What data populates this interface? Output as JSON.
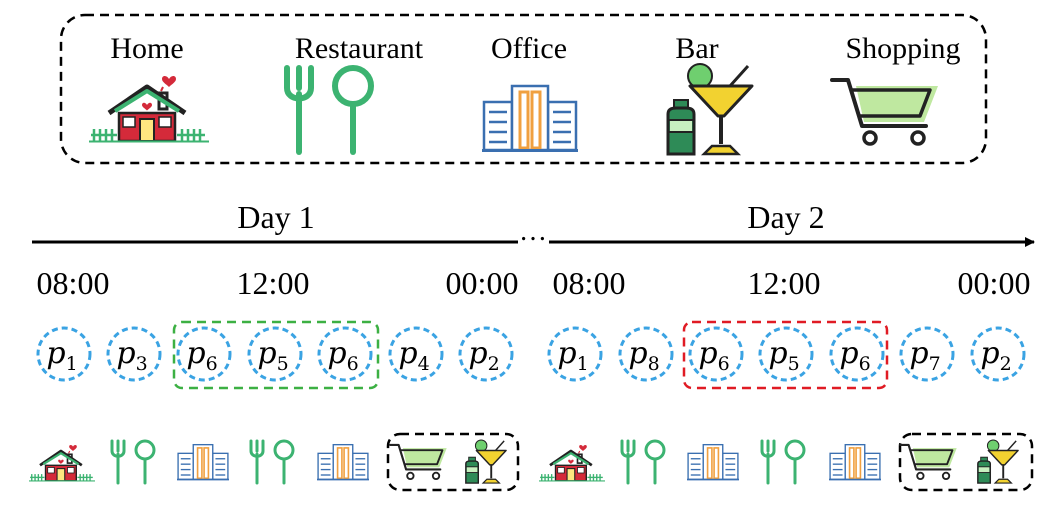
{
  "categories": [
    {
      "label": "Home",
      "icon": "home-icon"
    },
    {
      "label": "Restaurant",
      "icon": "restaurant-icon"
    },
    {
      "label": "Office",
      "icon": "office-icon"
    },
    {
      "label": "Bar",
      "icon": "bar-icon"
    },
    {
      "label": "Shopping",
      "icon": "shopping-icon"
    }
  ],
  "days": [
    {
      "label": "Day 1",
      "times": [
        "08:00",
        "12:00",
        "00:00"
      ],
      "pois": [
        {
          "base": "p",
          "sub": "1"
        },
        {
          "base": "p",
          "sub": "3"
        },
        {
          "base": "p",
          "sub": "6"
        },
        {
          "base": "p",
          "sub": "5"
        },
        {
          "base": "p",
          "sub": "6"
        },
        {
          "base": "p",
          "sub": "4"
        },
        {
          "base": "p",
          "sub": "2"
        }
      ],
      "highlight_color": "#3cb043",
      "visit_icons": [
        "home-icon",
        "restaurant-icon",
        "office-icon",
        "restaurant-icon",
        "office-icon",
        "shopping-icon",
        "bar-icon"
      ]
    },
    {
      "label": "Day 2",
      "times": [
        "08:00",
        "12:00",
        "00:00"
      ],
      "pois": [
        {
          "base": "p",
          "sub": "1"
        },
        {
          "base": "p",
          "sub": "8"
        },
        {
          "base": "p",
          "sub": "6"
        },
        {
          "base": "p",
          "sub": "5"
        },
        {
          "base": "p",
          "sub": "6"
        },
        {
          "base": "p",
          "sub": "7"
        },
        {
          "base": "p",
          "sub": "2"
        }
      ],
      "highlight_color": "#e01b24",
      "visit_icons": [
        "home-icon",
        "restaurant-icon",
        "office-icon",
        "restaurant-icon",
        "office-icon",
        "shopping-icon",
        "bar-icon"
      ]
    }
  ],
  "ellipsis": "…",
  "colors": {
    "poi_circle": "#3aa3e3",
    "restaurant": "#3cb371",
    "office_blue": "#3a6fb0",
    "office_orange": "#f0a040",
    "bar_yellow": "#f2d230",
    "bar_green": "#2e8b57",
    "shopping_green": "#bfe8a0",
    "home_red": "#d42a3a"
  }
}
